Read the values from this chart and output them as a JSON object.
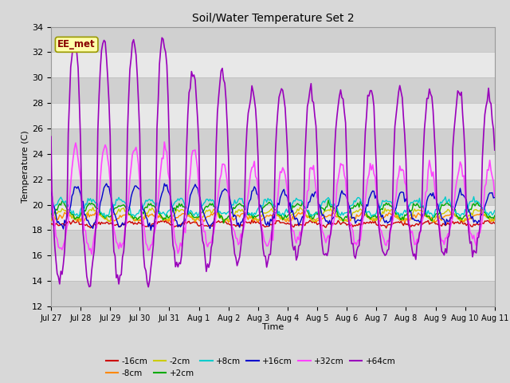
{
  "title": "Soil/Water Temperature Set 2",
  "xlabel": "Time",
  "ylabel": "Temperature (C)",
  "ylim": [
    12,
    34
  ],
  "yticks": [
    12,
    14,
    16,
    18,
    20,
    22,
    24,
    26,
    28,
    30,
    32,
    34
  ],
  "xlim": [
    0,
    360
  ],
  "xtick_positions": [
    0,
    24,
    48,
    72,
    96,
    120,
    144,
    168,
    192,
    216,
    240,
    264,
    288,
    312,
    336,
    360
  ],
  "xtick_labels": [
    "Jul 27",
    "Jul 28",
    "Jul 29",
    "Jul 30",
    "Jul 31",
    "Aug 1",
    "Aug 2",
    "Aug 3",
    "Aug 4",
    "Aug 5",
    "Aug 6",
    "Aug 7",
    "Aug 8",
    "Aug 9",
    "Aug 10",
    "Aug 11"
  ],
  "series_labels": [
    "-16cm",
    "-8cm",
    "-2cm",
    "+2cm",
    "+8cm",
    "+16cm",
    "+32cm",
    "+64cm"
  ],
  "series_colors": [
    "#cc0000",
    "#ff8800",
    "#cccc00",
    "#00aa00",
    "#00cccc",
    "#0000cc",
    "#ff44ff",
    "#9900bb"
  ],
  "ee_met_label": "EE_met",
  "plot_bg_color": "#d8d8d8",
  "band_color_light": "#e8e8e8",
  "band_color_dark": "#d0d0d0",
  "figsize": [
    6.4,
    4.8
  ],
  "dpi": 100
}
